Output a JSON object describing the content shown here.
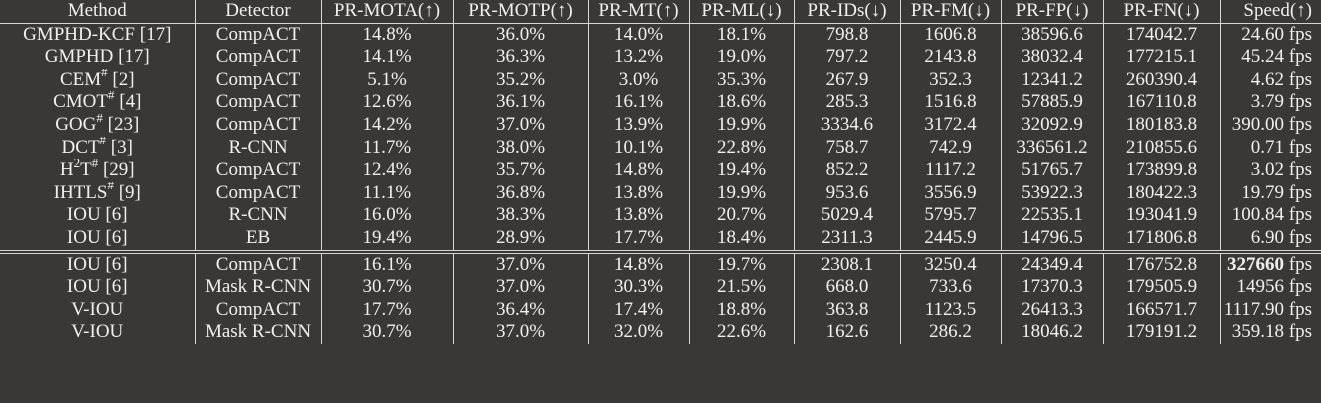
{
  "table": {
    "headers": [
      "Method",
      "Detector",
      "PR-MOTA(↑)",
      "PR-MOTP(↑)",
      "PR-MT(↑)",
      "PR-ML(↓)",
      "PR-IDs(↓)",
      "PR-FM(↓)",
      "PR-FP(↓)",
      "PR-FN(↓)",
      "Speed(↑)"
    ],
    "group1": [
      {
        "method": "GMPHD-KCF [17]",
        "detector": "CompACT",
        "mota": "14.8%",
        "motp": "36.0%",
        "mt": "14.0%",
        "ml": "18.1%",
        "ids": "798.8",
        "fm": "1606.8",
        "fp": "38596.6",
        "fn": "174042.7",
        "speed": "24.60 fps",
        "bold": [
          "ml"
        ]
      },
      {
        "method": "GMPHD [17]",
        "detector": "CompACT",
        "mota": "14.1%",
        "motp": "36.3%",
        "mt": "13.2%",
        "ml": "19.0%",
        "ids": "797.2",
        "fm": "2143.8",
        "fp": "38032.4",
        "fn": "177215.1",
        "speed": "45.24 fps",
        "bold": []
      },
      {
        "method_pre": "CEM",
        "method_sup": "#",
        "method_post": " [2]",
        "detector": "CompACT",
        "mota": "5.1%",
        "motp": "35.2%",
        "mt": "3.0%",
        "ml": "35.3%",
        "ids": "267.9",
        "fm": "352.3",
        "fp": "12341.2",
        "fn": "260390.4",
        "speed": "4.62 fps",
        "bold": [
          "fp"
        ]
      },
      {
        "method_pre": "CMOT",
        "method_sup": "#",
        "method_post": " [4]",
        "detector": "CompACT",
        "mota": "12.6%",
        "motp": "36.1%",
        "mt": "16.1%",
        "ml": "18.6%",
        "ids": "285.3",
        "fm": "1516.8",
        "fp": "57885.9",
        "fn": "167110.8",
        "speed": "3.79 fps",
        "bold": []
      },
      {
        "method_pre": "GOG",
        "method_sup": "#",
        "method_post": " [23]",
        "detector": "CompACT",
        "mota": "14.2%",
        "motp": "37.0%",
        "mt": "13.9%",
        "ml": "19.9%",
        "ids": "3334.6",
        "fm": "3172.4",
        "fp": "32092.9",
        "fn": "180183.8",
        "speed": "390.00 fps",
        "bold": []
      },
      {
        "method_pre": "DCT",
        "method_sup": "#",
        "method_post": " [3]",
        "detector": "R-CNN",
        "mota": "11.7%",
        "motp": "38.0%",
        "mt": "10.1%",
        "ml": "22.8%",
        "ids": "758.7",
        "fm": "742.9",
        "fp": "336561.2",
        "fn": "210855.6",
        "speed": "0.71 fps",
        "bold": []
      },
      {
        "method_pre": "H",
        "method_sup1": "2",
        "method_mid": "T",
        "method_sup": "#",
        "method_post": " [29]",
        "detector": "CompACT",
        "mota": "12.4%",
        "motp": "35.7%",
        "mt": "14.8%",
        "ml": "19.4%",
        "ids": "852.2",
        "fm": "1117.2",
        "fp": "51765.7",
        "fn": "173899.8",
        "speed": "3.02 fps",
        "bold": []
      },
      {
        "method_pre": "IHTLS",
        "method_sup": "#",
        "method_post": " [9]",
        "detector": "CompACT",
        "mota": "11.1%",
        "motp": "36.8%",
        "mt": "13.8%",
        "ml": "19.9%",
        "ids": "953.6",
        "fm": "3556.9",
        "fp": "53922.3",
        "fn": "180422.3",
        "speed": "19.79 fps",
        "bold": []
      },
      {
        "method": "IOU [6]",
        "detector": "R-CNN",
        "mota": "16.0%",
        "motp": "38.3%",
        "mt": "13.8%",
        "ml": "20.7%",
        "ids": "5029.4",
        "fm": "5795.7",
        "fp": "22535.1",
        "fn": "193041.9",
        "speed": "100.84 fps",
        "bold": [
          "motp"
        ]
      },
      {
        "method": "IOU [6]",
        "detector": "EB",
        "mota": "19.4%",
        "motp": "28.9%",
        "mt": "17.7%",
        "ml": "18.4%",
        "ids": "2311.3",
        "fm": "2445.9",
        "fp": "14796.5",
        "fn": "171806.8",
        "speed": "6.90 fps",
        "bold": []
      }
    ],
    "group2": [
      {
        "method": "IOU [6]",
        "detector": "CompACT",
        "mota": "16.1%",
        "motp": "37.0%",
        "mt": "14.8%",
        "ml": "19.7%",
        "ids": "2308.1",
        "fm": "3250.4",
        "fp": "24349.4",
        "fn": "176752.8",
        "speed_val": "327660",
        "speed_unit": " fps",
        "bold": [
          "speed_val"
        ]
      },
      {
        "method": "IOU [6]",
        "detector": "Mask R-CNN",
        "mota": "30.7%",
        "motp": "37.0%",
        "mt": "30.3%",
        "ml": "21.5%",
        "ids": "668.0",
        "fm": "733.6",
        "fp": "17370.3",
        "fn": "179505.9",
        "speed": "14956 fps",
        "bold": [
          "mota"
        ]
      },
      {
        "method": "V-IOU",
        "detector": "CompACT",
        "mota": "17.7%",
        "motp": "36.4%",
        "mt": "17.4%",
        "ml": "18.8%",
        "ids": "363.8",
        "fm": "1123.5",
        "fp": "26413.3",
        "fn": "166571.7",
        "speed": "1117.90 fps",
        "bold": [
          "fn"
        ]
      },
      {
        "method": "V-IOU",
        "detector": "Mask R-CNN",
        "mota": "30.7%",
        "motp": "37.0%",
        "mt": "32.0%",
        "ml": "22.6%",
        "ids": "162.6",
        "fm": "286.2",
        "fp": "18046.2",
        "fn": "179191.2",
        "speed": "359.18 fps",
        "bold": [
          "mota",
          "mt",
          "ids",
          "fm"
        ]
      }
    ]
  }
}
